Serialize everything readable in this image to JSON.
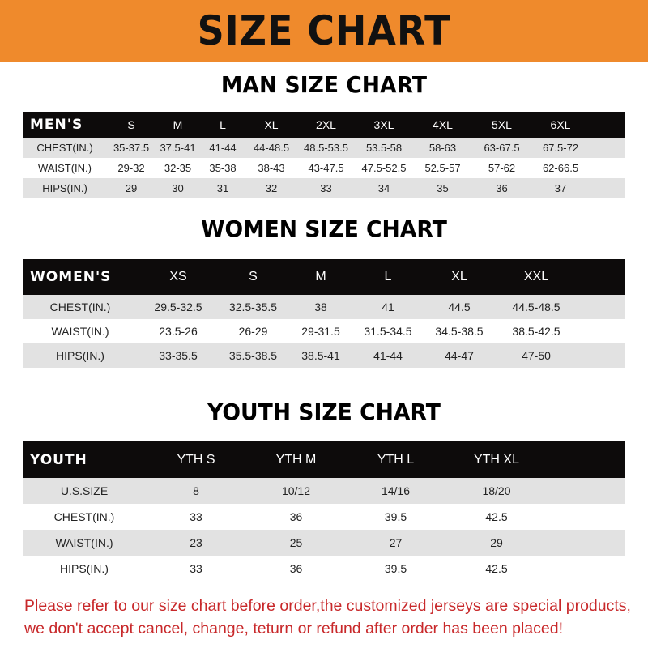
{
  "title": "SIZE CHART",
  "colors": {
    "banner": "#ef8a2c",
    "header_row": "#0d0b0b",
    "note": "#c8282a"
  },
  "men": {
    "title": "MAN SIZE CHART",
    "header": [
      "MEN'S",
      "S",
      "M",
      "L",
      "XL",
      "2XL",
      "3XL",
      "4XL",
      "5XL",
      "6XL"
    ],
    "rows": [
      [
        "CHEST(IN.)",
        "35-37.5",
        "37.5-41",
        "41-44",
        "44-48.5",
        "48.5-53.5",
        "53.5-58",
        "58-63",
        "63-67.5",
        "67.5-72"
      ],
      [
        "WAIST(IN.)",
        "29-32",
        "32-35",
        "35-38",
        "38-43",
        "43-47.5",
        "47.5-52.5",
        "52.5-57",
        "57-62",
        "62-66.5"
      ],
      [
        "HIPS(IN.)",
        "29",
        "30",
        "31",
        "32",
        "33",
        "34",
        "35",
        "36",
        "37"
      ]
    ]
  },
  "women": {
    "title": "WOMEN SIZE CHART",
    "header": [
      "WOMEN'S",
      "XS",
      "S",
      "M",
      "L",
      "XL",
      "XXL"
    ],
    "rows": [
      [
        "CHEST(IN.)",
        "29.5-32.5",
        "32.5-35.5",
        "38",
        "41",
        "44.5",
        "44.5-48.5"
      ],
      [
        "WAIST(IN.)",
        "23.5-26",
        "26-29",
        "29-31.5",
        "31.5-34.5",
        "34.5-38.5",
        "38.5-42.5"
      ],
      [
        "HIPS(IN.)",
        "33-35.5",
        "35.5-38.5",
        "38.5-41",
        "41-44",
        "44-47",
        "47-50"
      ]
    ]
  },
  "youth": {
    "title": "YOUTH SIZE CHART",
    "header": [
      "YOUTH",
      "YTH S",
      "YTH M",
      "YTH L",
      "YTH XL"
    ],
    "rows": [
      [
        "U.S.SIZE",
        "8",
        "10/12",
        "14/16",
        "18/20"
      ],
      [
        "CHEST(IN.)",
        "33",
        "36",
        "39.5",
        "42.5"
      ],
      [
        "WAIST(IN.)",
        "23",
        "25",
        "27",
        "29"
      ],
      [
        "HIPS(IN.)",
        "33",
        "36",
        "39.5",
        "42.5"
      ]
    ]
  },
  "note": [
    "Please refer to our size chart before order,the customized jerseys are special products,",
    "we don't accept cancel, change, teturn or refund after order has been placed!"
  ]
}
